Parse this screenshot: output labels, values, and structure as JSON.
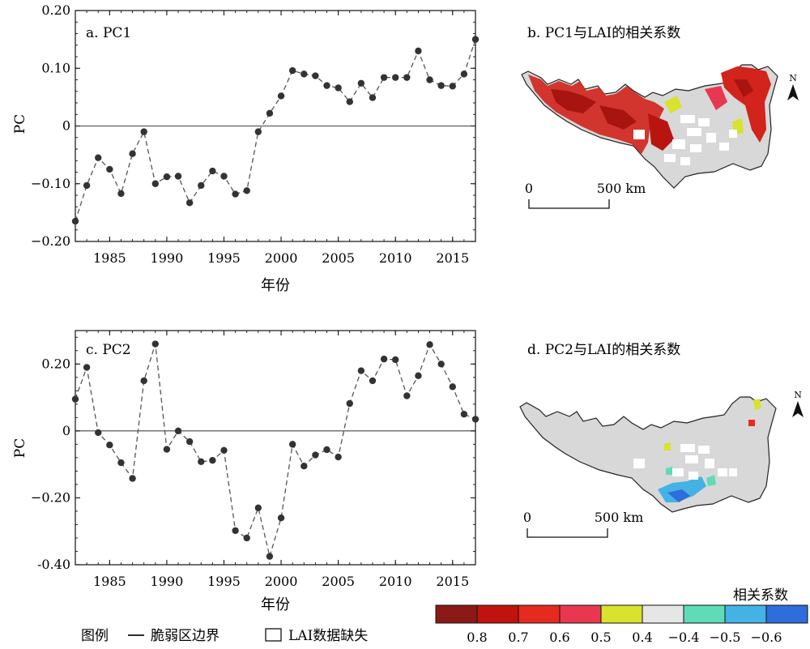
{
  "chart_data": [
    {
      "type": "line",
      "panel": "a",
      "label": "a. PC1",
      "ylabel": "PC",
      "xlabel": "年份",
      "x": [
        1982,
        1983,
        1984,
        1985,
        1986,
        1987,
        1988,
        1989,
        1990,
        1991,
        1992,
        1993,
        1994,
        1995,
        1996,
        1997,
        1998,
        1999,
        2000,
        2001,
        2002,
        2003,
        2004,
        2005,
        2006,
        2007,
        2008,
        2009,
        2010,
        2011,
        2012,
        2013,
        2014,
        2015,
        2016,
        2017
      ],
      "values": [
        -0.165,
        -0.103,
        -0.055,
        -0.075,
        -0.117,
        -0.048,
        -0.01,
        -0.1,
        -0.088,
        -0.087,
        -0.133,
        -0.103,
        -0.078,
        -0.087,
        -0.118,
        -0.112,
        -0.01,
        0.022,
        0.052,
        0.096,
        0.09,
        0.087,
        0.07,
        0.066,
        0.042,
        0.074,
        0.049,
        0.084,
        0.084,
        0.084,
        0.13,
        0.08,
        0.07,
        0.069,
        0.09,
        0.15
      ],
      "xlim": [
        1982,
        2017
      ],
      "ylim": [
        -0.2,
        0.2
      ],
      "yticks": [
        -0.2,
        -0.1,
        0,
        0.1,
        0.2
      ],
      "ytick_labels": [
        "−0.20",
        "−0.10",
        "0",
        "0.10",
        "0.20"
      ],
      "xticks": [
        1985,
        1990,
        1995,
        2000,
        2005,
        2010,
        2015
      ],
      "xtick_labels": [
        "1985",
        "1990",
        "1995",
        "2000",
        "2005",
        "2010",
        "2015"
      ]
    },
    {
      "type": "line",
      "panel": "c",
      "label": "c. PC2",
      "ylabel": "PC",
      "xlabel": "年份",
      "x": [
        1982,
        1983,
        1984,
        1985,
        1986,
        1987,
        1988,
        1989,
        1990,
        1991,
        1992,
        1993,
        1994,
        1995,
        1996,
        1997,
        1998,
        1999,
        2000,
        2001,
        2002,
        2003,
        2004,
        2005,
        2006,
        2007,
        2008,
        2009,
        2010,
        2011,
        2012,
        2013,
        2014,
        2015,
        2016,
        2017
      ],
      "values": [
        0.095,
        0.19,
        -0.005,
        -0.042,
        -0.095,
        -0.142,
        0.15,
        0.26,
        -0.055,
        0,
        -0.032,
        -0.092,
        -0.088,
        -0.058,
        -0.298,
        -0.32,
        -0.23,
        -0.375,
        -0.26,
        -0.04,
        -0.105,
        -0.072,
        -0.056,
        -0.078,
        0.082,
        0.18,
        0.15,
        0.215,
        0.213,
        0.105,
        0.165,
        0.258,
        0.2,
        0.132,
        0.05,
        0.035
      ],
      "xlim": [
        1982,
        2017
      ],
      "ylim": [
        -0.4,
        0.3
      ],
      "yticks": [
        -0.4,
        -0.2,
        0,
        0.2
      ],
      "ytick_labels": [
        "-0.40",
        "−0.20",
        "0",
        "0.20"
      ],
      "xticks": [
        1985,
        1990,
        1995,
        2000,
        2005,
        2010,
        2015
      ],
      "xtick_labels": [
        "1985",
        "1990",
        "1995",
        "2000",
        "2005",
        "2010",
        "2015"
      ]
    }
  ],
  "maps": {
    "b": {
      "title": "b. PC1与LAI的相关系数",
      "scale_zero": "0",
      "scale_label": "500 km",
      "north": "N"
    },
    "d": {
      "title": "d. PC2与LAI的相关系数",
      "scale_zero": "0",
      "scale_label": "500 km",
      "north": "N"
    }
  },
  "legend": {
    "title": "图例",
    "boundary_label": "脆弱区边界",
    "missing_label": "LAI数据缺失"
  },
  "colorbar": {
    "title": "相关系数",
    "colors": [
      "#8b1a16",
      "#c0130e",
      "#e52a1f",
      "#e8384f",
      "#d9e22c",
      "#e6e6e6",
      "#5fdcb7",
      "#44b2e4",
      "#2e6ddb"
    ],
    "tick_labels": [
      "0.8",
      "0.7",
      "0.6",
      "0.5",
      "0.4",
      "−0.4",
      "−0.5",
      "−0.6"
    ]
  },
  "colors": {
    "line": "#555555",
    "marker": "#333333",
    "region_fill": "#d8d8d8",
    "missing_fill": "#ffffff"
  }
}
